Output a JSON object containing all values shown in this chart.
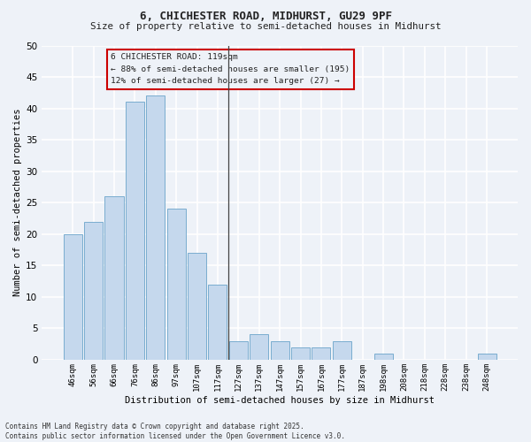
{
  "title1": "6, CHICHESTER ROAD, MIDHURST, GU29 9PF",
  "title2": "Size of property relative to semi-detached houses in Midhurst",
  "xlabel": "Distribution of semi-detached houses by size in Midhurst",
  "ylabel": "Number of semi-detached properties",
  "bin_labels": [
    "46sqm",
    "56sqm",
    "66sqm",
    "76sqm",
    "86sqm",
    "97sqm",
    "107sqm",
    "117sqm",
    "127sqm",
    "137sqm",
    "147sqm",
    "157sqm",
    "167sqm",
    "177sqm",
    "187sqm",
    "198sqm",
    "208sqm",
    "218sqm",
    "228sqm",
    "238sqm",
    "248sqm"
  ],
  "bar_values": [
    20,
    22,
    26,
    41,
    42,
    24,
    17,
    12,
    3,
    4,
    3,
    2,
    2,
    3,
    0,
    1,
    0,
    0,
    0,
    0,
    1
  ],
  "bar_color": "#c5d8ed",
  "bar_edge_color": "#7aadcf",
  "property_bin_index": 7,
  "annotation_title": "6 CHICHESTER ROAD: 119sqm",
  "annotation_line1": "← 88% of semi-detached houses are smaller (195)",
  "annotation_line2": "12% of semi-detached houses are larger (27) →",
  "ylim": [
    0,
    50
  ],
  "yticks": [
    0,
    5,
    10,
    15,
    20,
    25,
    30,
    35,
    40,
    45,
    50
  ],
  "background_color": "#eef2f8",
  "grid_color": "#ffffff",
  "footer1": "Contains HM Land Registry data © Crown copyright and database right 2025.",
  "footer2": "Contains public sector information licensed under the Open Government Licence v3.0."
}
